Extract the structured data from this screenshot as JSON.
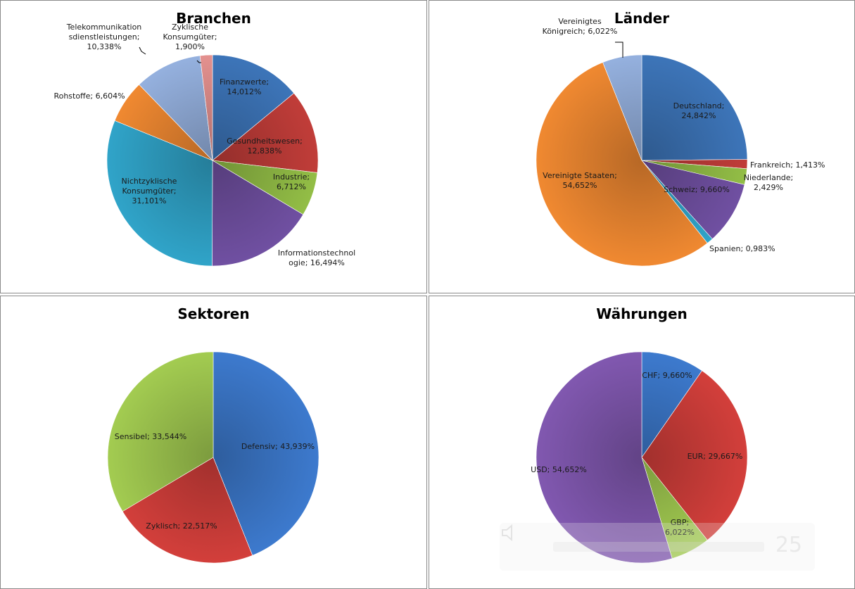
{
  "chart_data": [
    {
      "type": "pie",
      "title": "Branchen",
      "slices": [
        {
          "label": [
            "Finanzwerte;",
            "14,012%"
          ],
          "value": 14.012,
          "color": "#3a6fb0"
        },
        {
          "label": [
            "Gesundheitswesen;",
            "12,838%"
          ],
          "value": 12.838,
          "color": "#b83a36"
        },
        {
          "label": [
            "Industrie;",
            "6,712%"
          ],
          "value": 6.712,
          "color": "#8cb543"
        },
        {
          "label": [
            "Informationstechnol",
            "ogie; 16,494%"
          ],
          "value": 16.494,
          "color": "#6b4c9a"
        },
        {
          "label": [
            "Nichtzyklische",
            "Konsumgüter;",
            "31,101%"
          ],
          "value": 31.101,
          "color": "#2e9cbf"
        },
        {
          "label": [
            "Rohstoffe; 6,604%"
          ],
          "value": 6.604,
          "color": "#e5822f"
        },
        {
          "label": [
            "Telekommunikation",
            "sdienstleistungen;",
            "10,338%"
          ],
          "value": 10.338,
          "color": "#8ea9d4"
        },
        {
          "label": [
            "Zyklische",
            "Konsumgüter;",
            "1,900%"
          ],
          "value": 1.9,
          "color": "#d98a88"
        }
      ]
    },
    {
      "type": "pie",
      "title": "Länder",
      "slices": [
        {
          "label": [
            "Deutschland;",
            "24,842%"
          ],
          "value": 24.842,
          "color": "#3a6fb0"
        },
        {
          "label": [
            "Frankreich; 1,413%"
          ],
          "value": 1.413,
          "color": "#b83a36"
        },
        {
          "label": [
            "Niederlande;",
            "2,429%"
          ],
          "value": 2.429,
          "color": "#8cb543"
        },
        {
          "label": [
            "Schweiz; 9,660%"
          ],
          "value": 9.66,
          "color": "#6b4c9a"
        },
        {
          "label": [
            "Spanien; 0,983%"
          ],
          "value": 0.983,
          "color": "#2e9cbf"
        },
        {
          "label": [
            "Vereinigte Staaten;",
            "54,652%"
          ],
          "value": 54.652,
          "color": "#e5822f"
        },
        {
          "label": [
            "Vereinigtes",
            "Königreich; 6,022%"
          ],
          "value": 6.022,
          "color": "#8ea9d4"
        }
      ]
    },
    {
      "type": "pie",
      "title": "Sektoren",
      "slices": [
        {
          "label": [
            "Defensiv; 43,939%"
          ],
          "value": 43.939,
          "color": "#3a74c4"
        },
        {
          "label": [
            "Zyklisch; 22,517%"
          ],
          "value": 22.517,
          "color": "#c93c38"
        },
        {
          "label": [
            "Sensibel; 33,544%"
          ],
          "value": 33.544,
          "color": "#9bc24d"
        }
      ]
    },
    {
      "type": "pie",
      "title": "Währungen",
      "slices": [
        {
          "label": [
            "CHF; 9,660%"
          ],
          "value": 9.66,
          "color": "#3a74c4"
        },
        {
          "label": [
            "EUR; 29,667%"
          ],
          "value": 29.667,
          "color": "#c93c38"
        },
        {
          "label": [
            "GBP;",
            "6,022%"
          ],
          "value": 6.022,
          "color": "#9bc24d"
        },
        {
          "label": [
            "USD; 54,652%"
          ],
          "value": 54.652,
          "color": "#7b54a8"
        }
      ]
    }
  ],
  "overlay": {
    "icon": "speaker-icon",
    "volume_number": "25"
  }
}
